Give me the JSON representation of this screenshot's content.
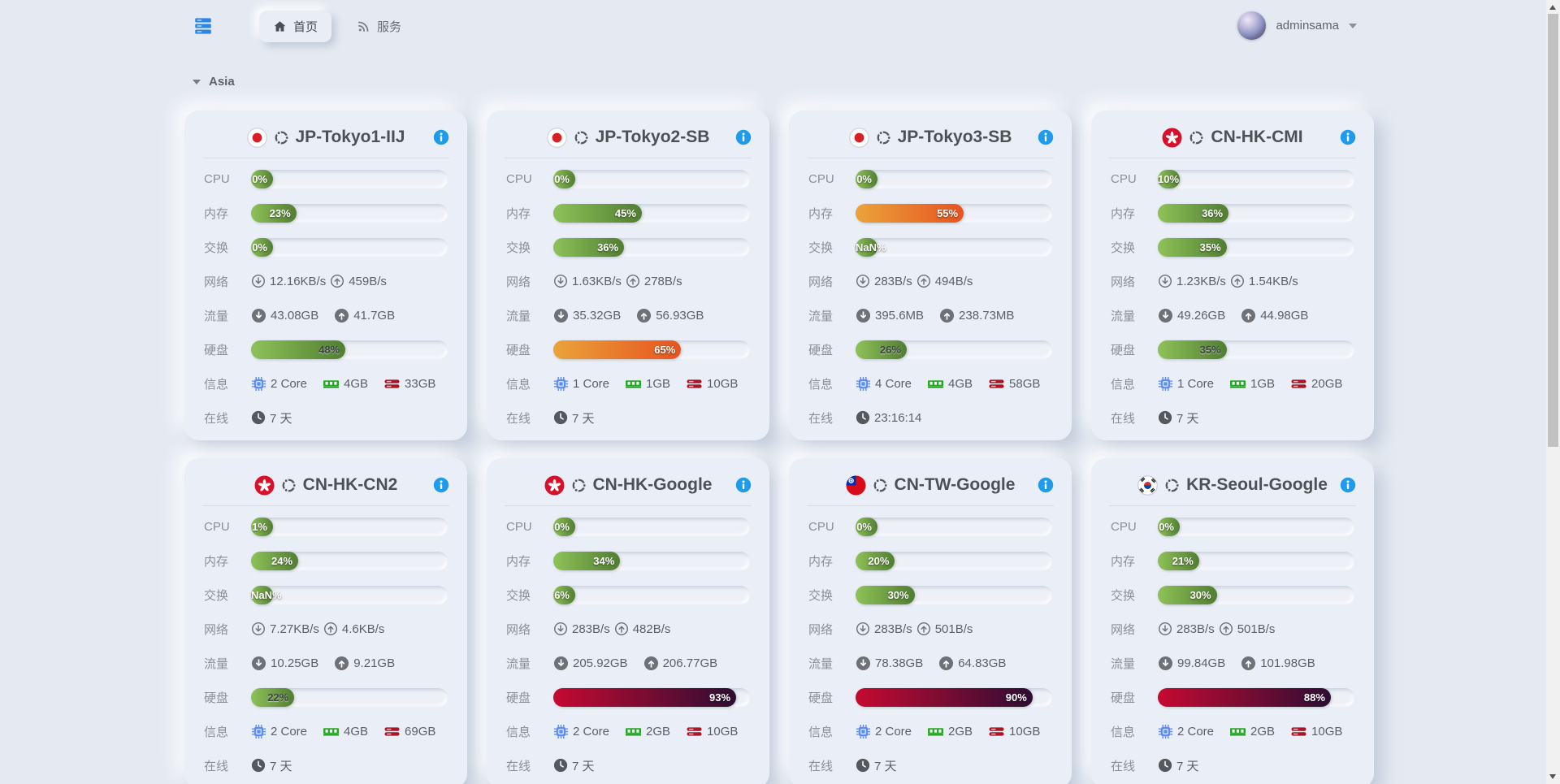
{
  "header": {
    "tabs": [
      {
        "label": "首页",
        "icon": "home-icon",
        "active": true
      },
      {
        "label": "服务",
        "icon": "rss-icon",
        "active": false
      }
    ],
    "user": {
      "name": "adminsama"
    }
  },
  "section": {
    "title": "Asia"
  },
  "row_labels": {
    "cpu": "CPU",
    "memory": "内存",
    "swap": "交换",
    "network": "网络",
    "traffic": "流量",
    "disk": "硬盘",
    "info": "信息",
    "uptime": "在线"
  },
  "colors": {
    "accent_blue": "#1e9bea",
    "menu_blue": "#2b85e4",
    "bar_green": "#8ec258",
    "bar_orange": "#eaa33a",
    "bar_red": "#c50a31"
  },
  "servers": [
    {
      "name": "JP-Tokyo1-IIJ",
      "flag": "jp",
      "cpu": {
        "text": "0%",
        "value": 0,
        "level": "green"
      },
      "memory": {
        "text": "23%",
        "value": 23,
        "level": "green"
      },
      "swap": {
        "text": "0%",
        "value": 0,
        "level": "green"
      },
      "network": {
        "down": "12.16KB/s",
        "up": "459B/s"
      },
      "traffic": {
        "down": "43.08GB",
        "up": "41.7GB"
      },
      "disk": {
        "text": "48%",
        "value": 48,
        "level": "green"
      },
      "info": {
        "cores": "2 Core",
        "ram": "4GB",
        "storage": "33GB"
      },
      "uptime": "7 天"
    },
    {
      "name": "JP-Tokyo2-SB",
      "flag": "jp",
      "cpu": {
        "text": "0%",
        "value": 0,
        "level": "green"
      },
      "memory": {
        "text": "45%",
        "value": 45,
        "level": "green"
      },
      "swap": {
        "text": "36%",
        "value": 36,
        "level": "green"
      },
      "network": {
        "down": "1.63KB/s",
        "up": "278B/s"
      },
      "traffic": {
        "down": "35.32GB",
        "up": "56.93GB"
      },
      "disk": {
        "text": "65%",
        "value": 65,
        "level": "orange"
      },
      "info": {
        "cores": "1 Core",
        "ram": "1GB",
        "storage": "10GB"
      },
      "uptime": "7 天"
    },
    {
      "name": "JP-Tokyo3-SB",
      "flag": "jp",
      "cpu": {
        "text": "0%",
        "value": 0,
        "level": "green"
      },
      "memory": {
        "text": "55%",
        "value": 55,
        "level": "orange"
      },
      "swap": {
        "text": "NaN%",
        "value": 0,
        "level": "green"
      },
      "network": {
        "down": "283B/s",
        "up": "494B/s"
      },
      "traffic": {
        "down": "395.6MB",
        "up": "238.73MB"
      },
      "disk": {
        "text": "26%",
        "value": 26,
        "level": "green"
      },
      "info": {
        "cores": "4 Core",
        "ram": "4GB",
        "storage": "58GB"
      },
      "uptime": "23:16:14"
    },
    {
      "name": "CN-HK-CMI",
      "flag": "hk",
      "cpu": {
        "text": "10%",
        "value": 10,
        "level": "green"
      },
      "memory": {
        "text": "36%",
        "value": 36,
        "level": "green"
      },
      "swap": {
        "text": "35%",
        "value": 35,
        "level": "green"
      },
      "network": {
        "down": "1.23KB/s",
        "up": "1.54KB/s"
      },
      "traffic": {
        "down": "49.26GB",
        "up": "44.98GB"
      },
      "disk": {
        "text": "35%",
        "value": 35,
        "level": "green"
      },
      "info": {
        "cores": "1 Core",
        "ram": "1GB",
        "storage": "20GB"
      },
      "uptime": "7 天"
    },
    {
      "name": "CN-HK-CN2",
      "flag": "hk",
      "cpu": {
        "text": "1%",
        "value": 1,
        "level": "green"
      },
      "memory": {
        "text": "24%",
        "value": 24,
        "level": "green"
      },
      "swap": {
        "text": "NaN%",
        "value": 0,
        "level": "green"
      },
      "network": {
        "down": "7.27KB/s",
        "up": "4.6KB/s"
      },
      "traffic": {
        "down": "10.25GB",
        "up": "9.21GB"
      },
      "disk": {
        "text": "22%",
        "value": 22,
        "level": "green"
      },
      "info": {
        "cores": "2 Core",
        "ram": "4GB",
        "storage": "69GB"
      },
      "uptime": "7 天"
    },
    {
      "name": "CN-HK-Google",
      "flag": "hk",
      "cpu": {
        "text": "0%",
        "value": 0,
        "level": "green"
      },
      "memory": {
        "text": "34%",
        "value": 34,
        "level": "green"
      },
      "swap": {
        "text": "6%",
        "value": 6,
        "level": "green"
      },
      "network": {
        "down": "283B/s",
        "up": "482B/s"
      },
      "traffic": {
        "down": "205.92GB",
        "up": "206.77GB"
      },
      "disk": {
        "text": "93%",
        "value": 93,
        "level": "red"
      },
      "info": {
        "cores": "2 Core",
        "ram": "2GB",
        "storage": "10GB"
      },
      "uptime": "7 天"
    },
    {
      "name": "CN-TW-Google",
      "flag": "tw",
      "cpu": {
        "text": "0%",
        "value": 0,
        "level": "green"
      },
      "memory": {
        "text": "20%",
        "value": 20,
        "level": "green"
      },
      "swap": {
        "text": "30%",
        "value": 30,
        "level": "green"
      },
      "network": {
        "down": "283B/s",
        "up": "501B/s"
      },
      "traffic": {
        "down": "78.38GB",
        "up": "64.83GB"
      },
      "disk": {
        "text": "90%",
        "value": 90,
        "level": "red"
      },
      "info": {
        "cores": "2 Core",
        "ram": "2GB",
        "storage": "10GB"
      },
      "uptime": "7 天"
    },
    {
      "name": "KR-Seoul-Google",
      "flag": "kr",
      "cpu": {
        "text": "0%",
        "value": 0,
        "level": "green"
      },
      "memory": {
        "text": "21%",
        "value": 21,
        "level": "green"
      },
      "swap": {
        "text": "30%",
        "value": 30,
        "level": "green"
      },
      "network": {
        "down": "283B/s",
        "up": "501B/s"
      },
      "traffic": {
        "down": "99.84GB",
        "up": "101.98GB"
      },
      "disk": {
        "text": "88%",
        "value": 88,
        "level": "red"
      },
      "info": {
        "cores": "2 Core",
        "ram": "2GB",
        "storage": "10GB"
      },
      "uptime": "7 天"
    }
  ]
}
